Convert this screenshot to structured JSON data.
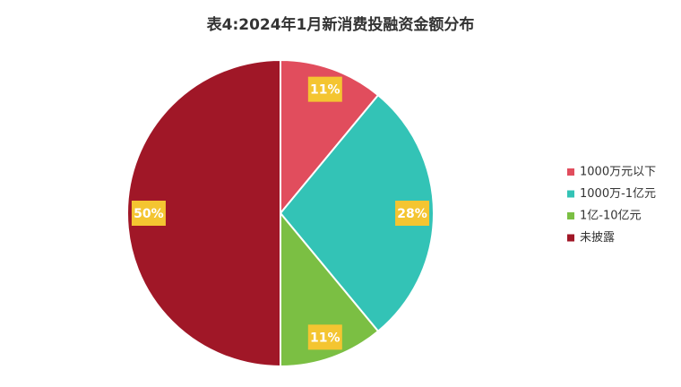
{
  "chart_data": {
    "type": "pie",
    "title": "表4:2024年1月新消费投融资金额分布",
    "categories": [
      "1000万元以下",
      "1000万-1亿元",
      "1亿-10亿元",
      "未披露"
    ],
    "values": [
      11,
      28,
      11,
      50
    ],
    "value_labels": [
      "11%",
      "28%",
      "11%",
      "50%"
    ],
    "colors": [
      "#e14d5d",
      "#33c3b6",
      "#7bbf43",
      "#a01727"
    ],
    "legend": "right"
  }
}
